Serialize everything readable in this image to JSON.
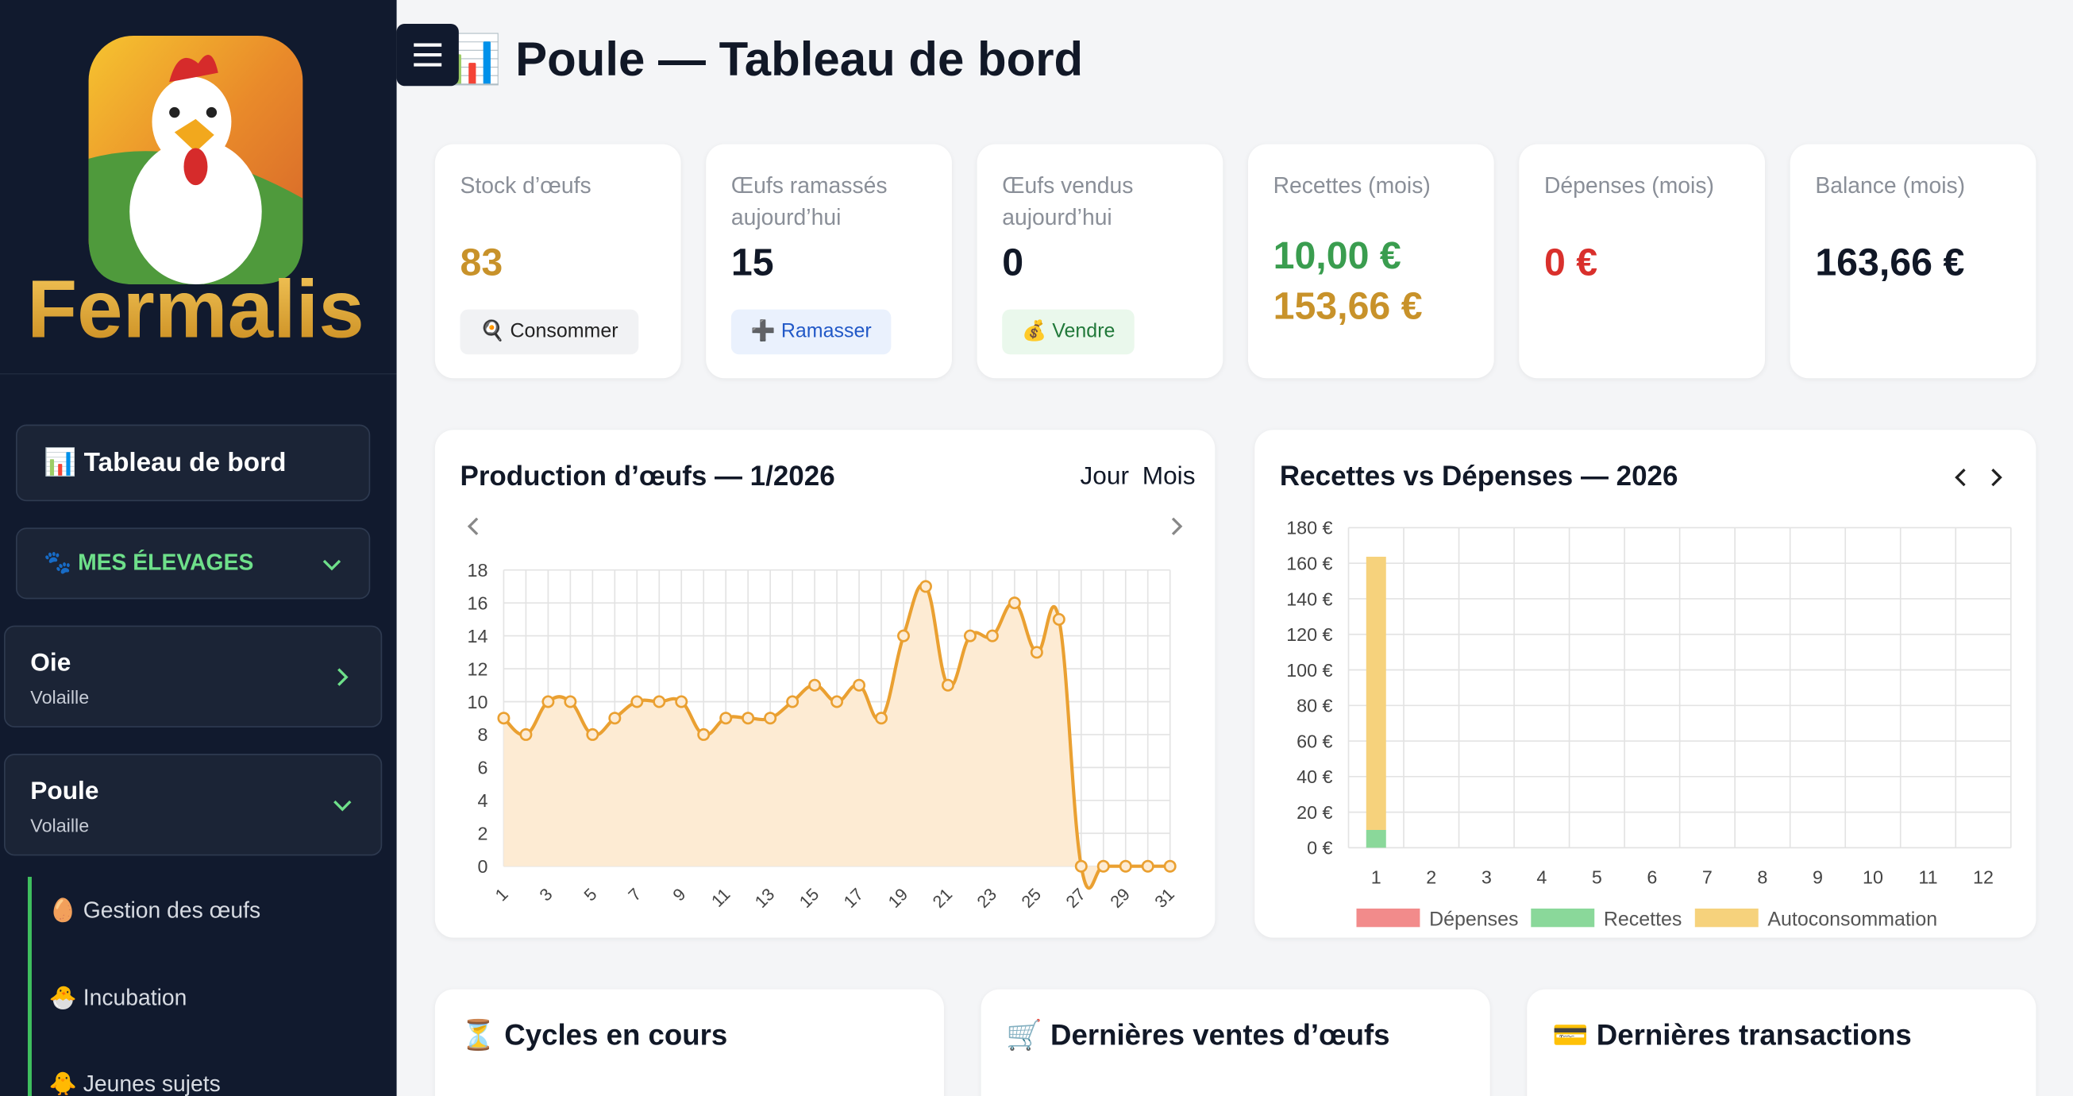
{
  "header": {
    "title": "📊 Poule — Tableau de bord"
  },
  "sidebar": {
    "brand": "Fermalis",
    "dashboard": "📊 Tableau de bord",
    "section": "🐾 MES ÉLEVAGES",
    "groups": [
      {
        "name": "Oie",
        "kind": "Volaille"
      },
      {
        "name": "Poule",
        "kind": "Volaille"
      }
    ],
    "subitems": [
      "🥚 Gestion des œufs",
      "🐣 Incubation",
      "🐥 Jeunes sujets"
    ]
  },
  "stats": [
    {
      "label": "Stock d’œufs",
      "values": [
        "83"
      ],
      "colors": [
        "#c8922a"
      ],
      "action": "🍳 Consommer"
    },
    {
      "label": "Œufs ramassés aujourd’hui",
      "values": [
        "15"
      ],
      "colors": [
        "#111827"
      ],
      "action": "➕ Ramasser"
    },
    {
      "label": "Œufs vendus aujourd’hui",
      "values": [
        "0"
      ],
      "colors": [
        "#111827"
      ],
      "action": "💰 Vendre"
    },
    {
      "label": "Recettes (mois)",
      "values": [
        "10,00 €",
        "153,66 €"
      ],
      "colors": [
        "#3a9d4f",
        "#c8922a"
      ]
    },
    {
      "label": "Dépenses (mois)",
      "values": [
        "0 €"
      ],
      "colors": [
        "#d9302c"
      ]
    },
    {
      "label": "Balance (mois)",
      "values": [
        "163,66 €"
      ],
      "colors": [
        "#111827"
      ]
    }
  ],
  "chart_data": [
    {
      "type": "line",
      "title": "Production d’œufs — 1/2026",
      "toggle": [
        "Jour",
        "Mois"
      ],
      "categories": [
        "1",
        null,
        "3",
        null,
        "5",
        null,
        "7",
        null,
        "9",
        null,
        "11",
        null,
        "13",
        null,
        "15",
        null,
        "17",
        null,
        "19",
        null,
        "21",
        null,
        "23",
        null,
        "25",
        null,
        "27",
        null,
        "29",
        null,
        "31"
      ],
      "values": [
        9,
        8,
        10,
        10,
        8,
        9,
        10,
        10,
        10,
        8,
        9,
        9,
        9,
        10,
        11,
        10,
        11,
        9,
        14,
        17,
        11,
        14,
        14,
        16,
        13,
        15,
        0,
        0,
        0,
        0,
        0
      ],
      "color": "#eaa031",
      "fill": "#fdebd3",
      "ylim": [
        0,
        18
      ],
      "yticks": [
        0,
        2,
        4,
        6,
        8,
        10,
        12,
        14,
        16,
        18
      ],
      "grid": true
    },
    {
      "type": "stacked_bar",
      "title": "Recettes vs Dépenses — 2026",
      "categories": [
        "1",
        "2",
        "3",
        "4",
        "5",
        "6",
        "7",
        "8",
        "9",
        "10",
        "11",
        "12"
      ],
      "series": [
        {
          "name": "Dépenses",
          "color": "#f28b8b",
          "values": [
            0,
            0,
            0,
            0,
            0,
            0,
            0,
            0,
            0,
            0,
            0,
            0
          ]
        },
        {
          "name": "Recettes",
          "color": "#8ad89a",
          "values": [
            10,
            0,
            0,
            0,
            0,
            0,
            0,
            0,
            0,
            0,
            0,
            0
          ]
        },
        {
          "name": "Autoconsommation",
          "color": "#f6d27c",
          "values": [
            153.66,
            0,
            0,
            0,
            0,
            0,
            0,
            0,
            0,
            0,
            0,
            0
          ]
        }
      ],
      "ylim": [
        0,
        180
      ],
      "yticks": [
        {
          "value": 0,
          "label": "0 €"
        },
        {
          "value": 20,
          "label": "20 €"
        },
        {
          "value": 40,
          "label": "40 €"
        },
        {
          "value": 60,
          "label": "60 €"
        },
        {
          "value": 80,
          "label": "80 €"
        },
        {
          "value": 100,
          "label": "100 €"
        },
        {
          "value": 120,
          "label": "120 €"
        },
        {
          "value": 140,
          "label": "140 €"
        },
        {
          "value": 160,
          "label": "160 €"
        },
        {
          "value": 180,
          "label": "180 €"
        }
      ],
      "grid": true,
      "legend": "bottom"
    }
  ],
  "panels": [
    "⏳ Cycles en cours",
    "🛒 Dernières ventes d’œufs",
    "💳 Dernières transactions"
  ]
}
